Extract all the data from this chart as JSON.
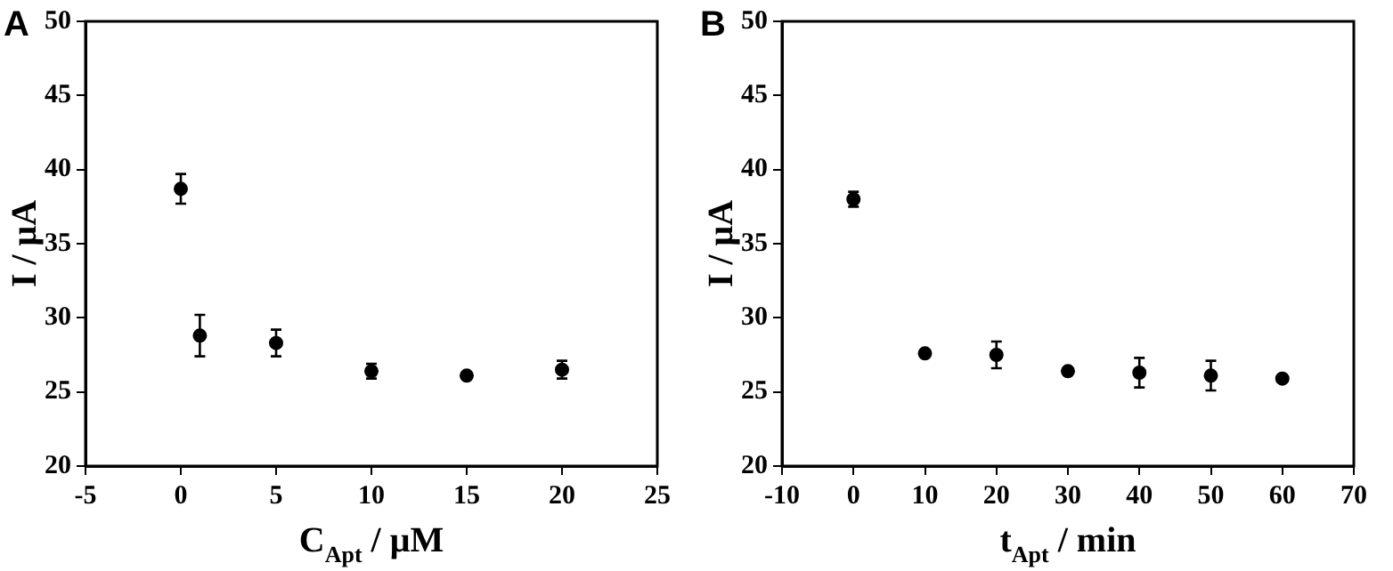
{
  "chart_data": [
    {
      "type": "scatter",
      "title": "A",
      "xlabel": "C$_{Apt}$ / μM",
      "ylabel": "I / μA",
      "xlim": [
        -5,
        25
      ],
      "xticks": [
        -5,
        0,
        5,
        10,
        15,
        20,
        25
      ],
      "ylim": [
        20,
        50
      ],
      "yticks": [
        20,
        25,
        30,
        35,
        40,
        45,
        50
      ],
      "grid": false,
      "legend": false,
      "marker": "circle",
      "series": [
        {
          "color": "#000000",
          "x": [
            0,
            1,
            5,
            10,
            15,
            20
          ],
          "values": [
            38.7,
            28.8,
            28.3,
            26.4,
            26.1,
            26.5
          ],
          "errors": [
            1.0,
            1.4,
            0.9,
            0.5,
            null,
            0.6
          ]
        }
      ]
    },
    {
      "type": "scatter",
      "title": "B",
      "xlabel": "t$_{Apt}$ / min",
      "ylabel": "I / μA",
      "xlim": [
        -10,
        70
      ],
      "xticks": [
        -10,
        0,
        10,
        20,
        30,
        40,
        50,
        60,
        70
      ],
      "ylim": [
        20,
        50
      ],
      "yticks": [
        20,
        25,
        30,
        35,
        40,
        45,
        50
      ],
      "grid": false,
      "legend": false,
      "marker": "circle",
      "series": [
        {
          "color": "#000000",
          "x": [
            0,
            10,
            20,
            30,
            40,
            50,
            60
          ],
          "values": [
            38.0,
            27.6,
            27.5,
            26.4,
            26.3,
            26.1,
            25.9
          ],
          "errors": [
            0.5,
            null,
            0.9,
            null,
            1.0,
            1.0,
            null
          ]
        }
      ]
    }
  ]
}
